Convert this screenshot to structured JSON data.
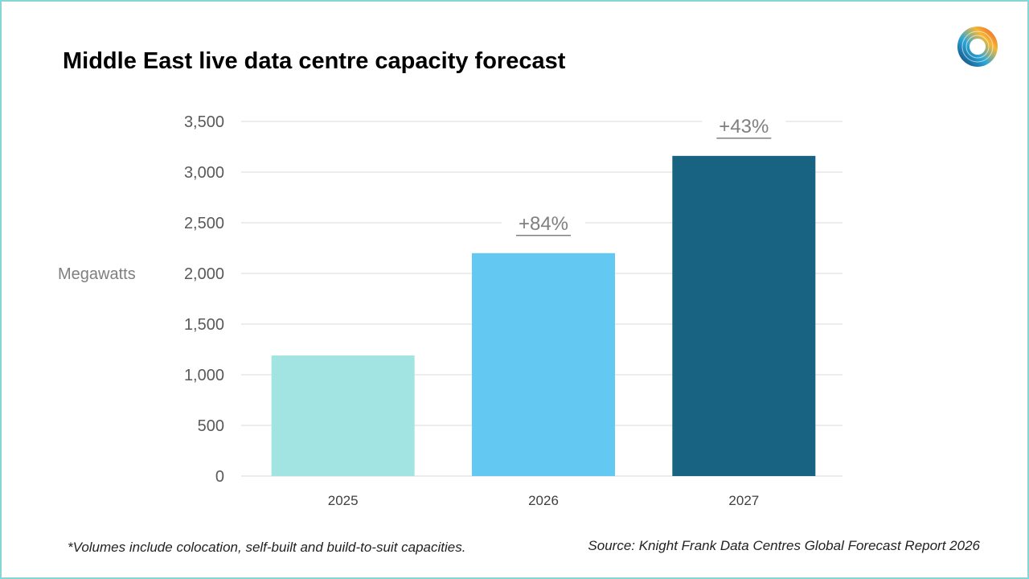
{
  "title": "Middle East live data centre capacity forecast",
  "footnote": "*Volumes include colocation, self-built and build-to-suit capacities.",
  "source": "Source: Knight Frank Data Centres Global Forecast Report 2026",
  "logo_icon": "knight-frank-circular-logo",
  "chart_data": {
    "type": "bar",
    "title": "Middle East live data centre capacity forecast",
    "xlabel": "",
    "ylabel": "Megawatts",
    "categories": [
      "2025",
      "2026",
      "2027"
    ],
    "values": [
      1190,
      2200,
      3160
    ],
    "colors": [
      "#a2e4e2",
      "#63c9f2",
      "#186282"
    ],
    "annotations": [
      "",
      "+84%",
      "+43%"
    ],
    "ylim": [
      0,
      3500
    ],
    "yticks": [
      0,
      500,
      1000,
      1500,
      2000,
      2500,
      3000,
      3500
    ],
    "ytick_labels": [
      "0",
      "500",
      "1,000",
      "1,500",
      "2,000",
      "2,500",
      "3,000",
      "3,500"
    ],
    "grid": true,
    "legend": "none"
  }
}
